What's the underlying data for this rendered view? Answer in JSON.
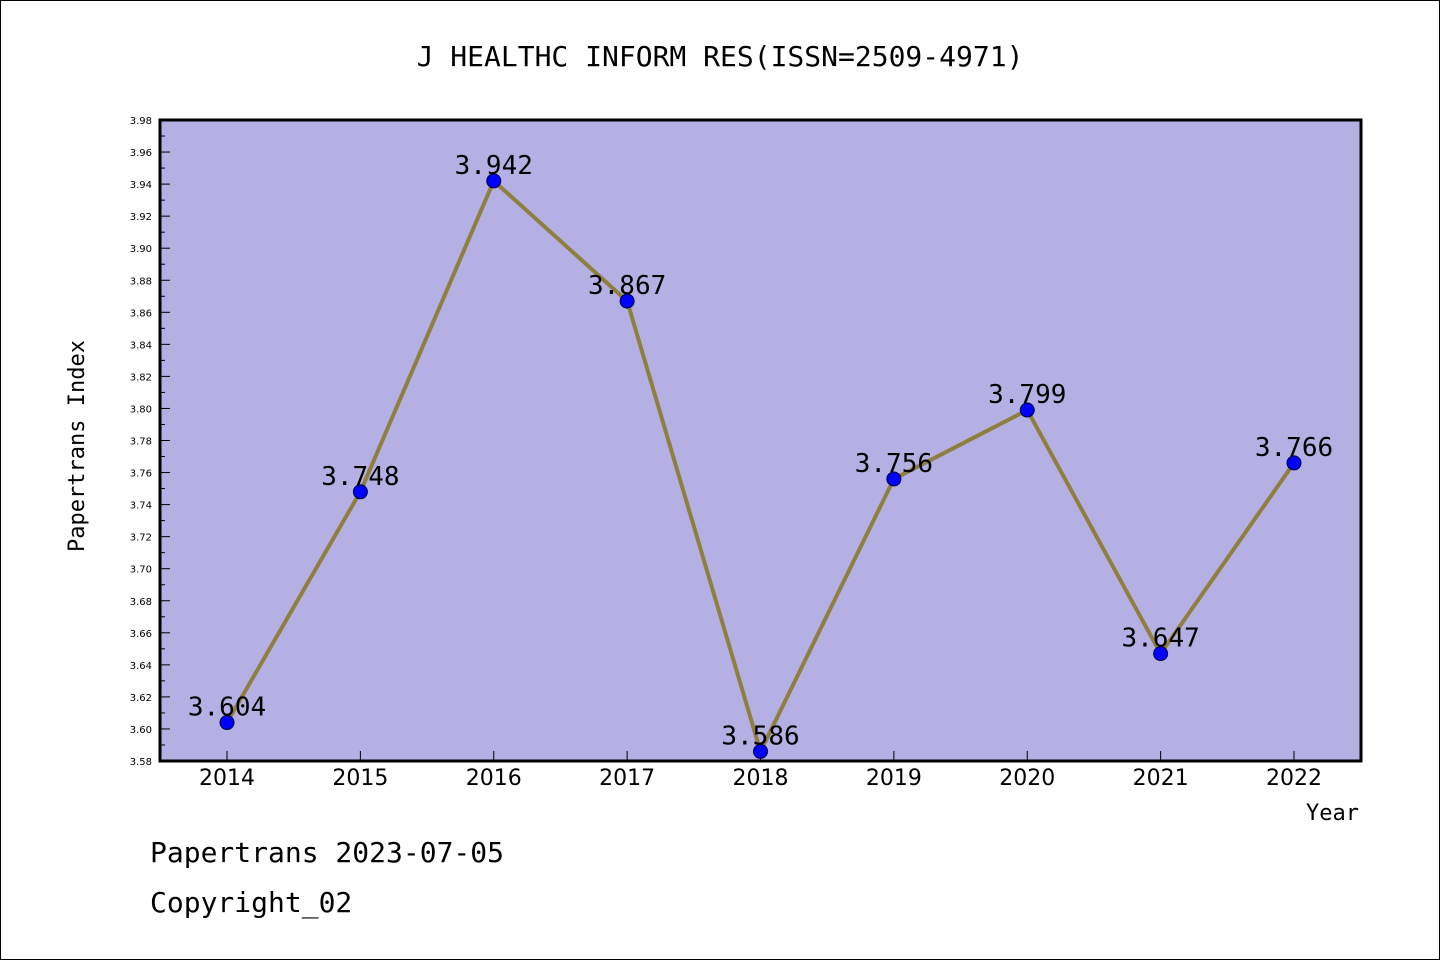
{
  "chart_data": {
    "type": "line",
    "title": "J HEALTHC INFORM RES(ISSN=2509-4971)",
    "xlabel": "Year",
    "ylabel": "Papertrans Index",
    "categories": [
      "2014",
      "2015",
      "2016",
      "2017",
      "2018",
      "2019",
      "2020",
      "2021",
      "2022"
    ],
    "values": [
      3.604,
      3.748,
      3.942,
      3.867,
      3.586,
      3.756,
      3.799,
      3.647,
      3.766
    ],
    "data_labels": [
      "3.604",
      "3.748",
      "3.942",
      "3.867",
      "3.586",
      "3.756",
      "3.799",
      "3.647",
      "3.766"
    ],
    "ylim": [
      3.58,
      3.98
    ],
    "yticks": [
      "3.58",
      "3.60",
      "3.62",
      "3.64",
      "3.66",
      "3.68",
      "3.70",
      "3.72",
      "3.74",
      "3.76",
      "3.78",
      "3.80",
      "3.82",
      "3.84",
      "3.86",
      "3.88",
      "3.90",
      "3.92",
      "3.94",
      "3.96",
      "3.98"
    ],
    "grid": false,
    "colors": {
      "plot_background": "#b5b0e3",
      "line": "#8f7f3f",
      "marker": "#0000ff"
    }
  },
  "footer": {
    "line1": "Papertrans 2023-07-05",
    "line2": "Copyright_02"
  }
}
